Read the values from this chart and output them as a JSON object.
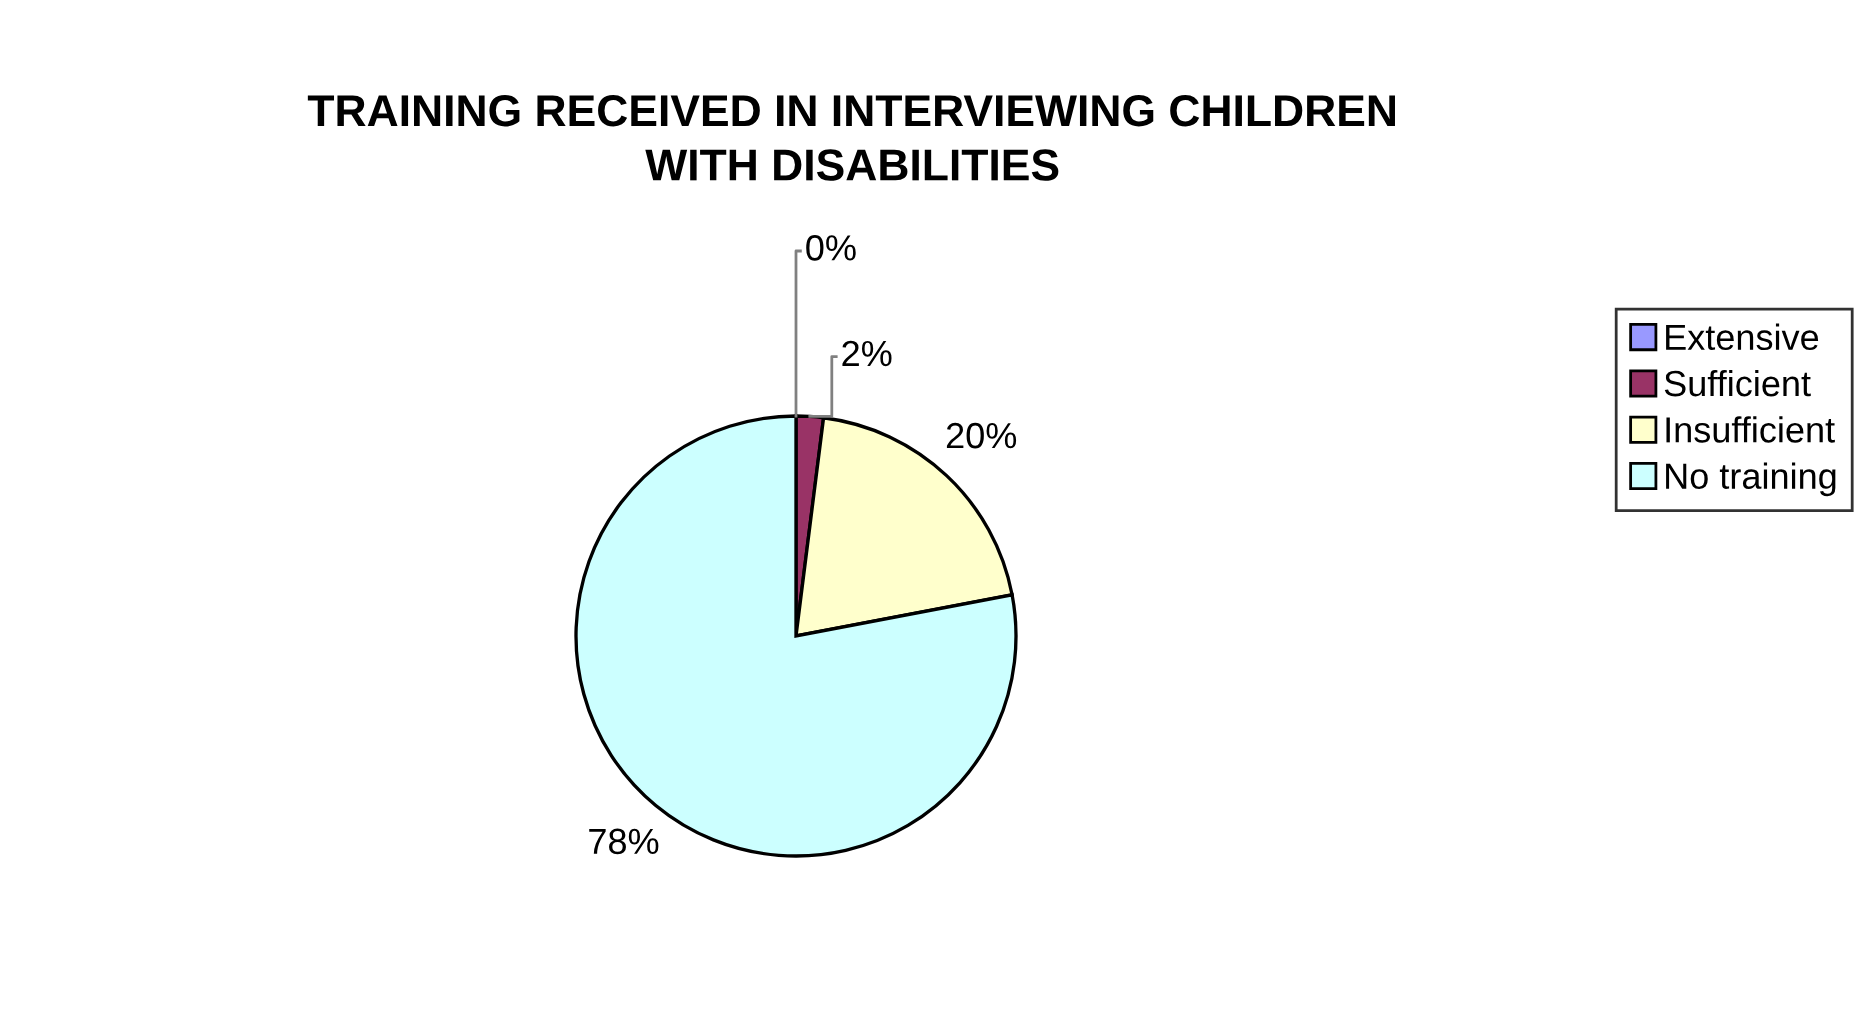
{
  "chart_data": {
    "type": "pie",
    "title": "TRAINING RECEIVED IN INTERVIEWING CHILDREN\nWITH DISABILITIES",
    "categories": [
      "Extensive",
      "Sufficient",
      "Insufficient",
      "No training"
    ],
    "values": [
      0,
      2,
      20,
      78
    ],
    "colors": [
      "#9999ff",
      "#993366",
      "#ffffcc",
      "#ccffff"
    ],
    "value_labels": [
      "0%",
      "2%",
      "20%",
      "78%"
    ],
    "legend": "right"
  }
}
